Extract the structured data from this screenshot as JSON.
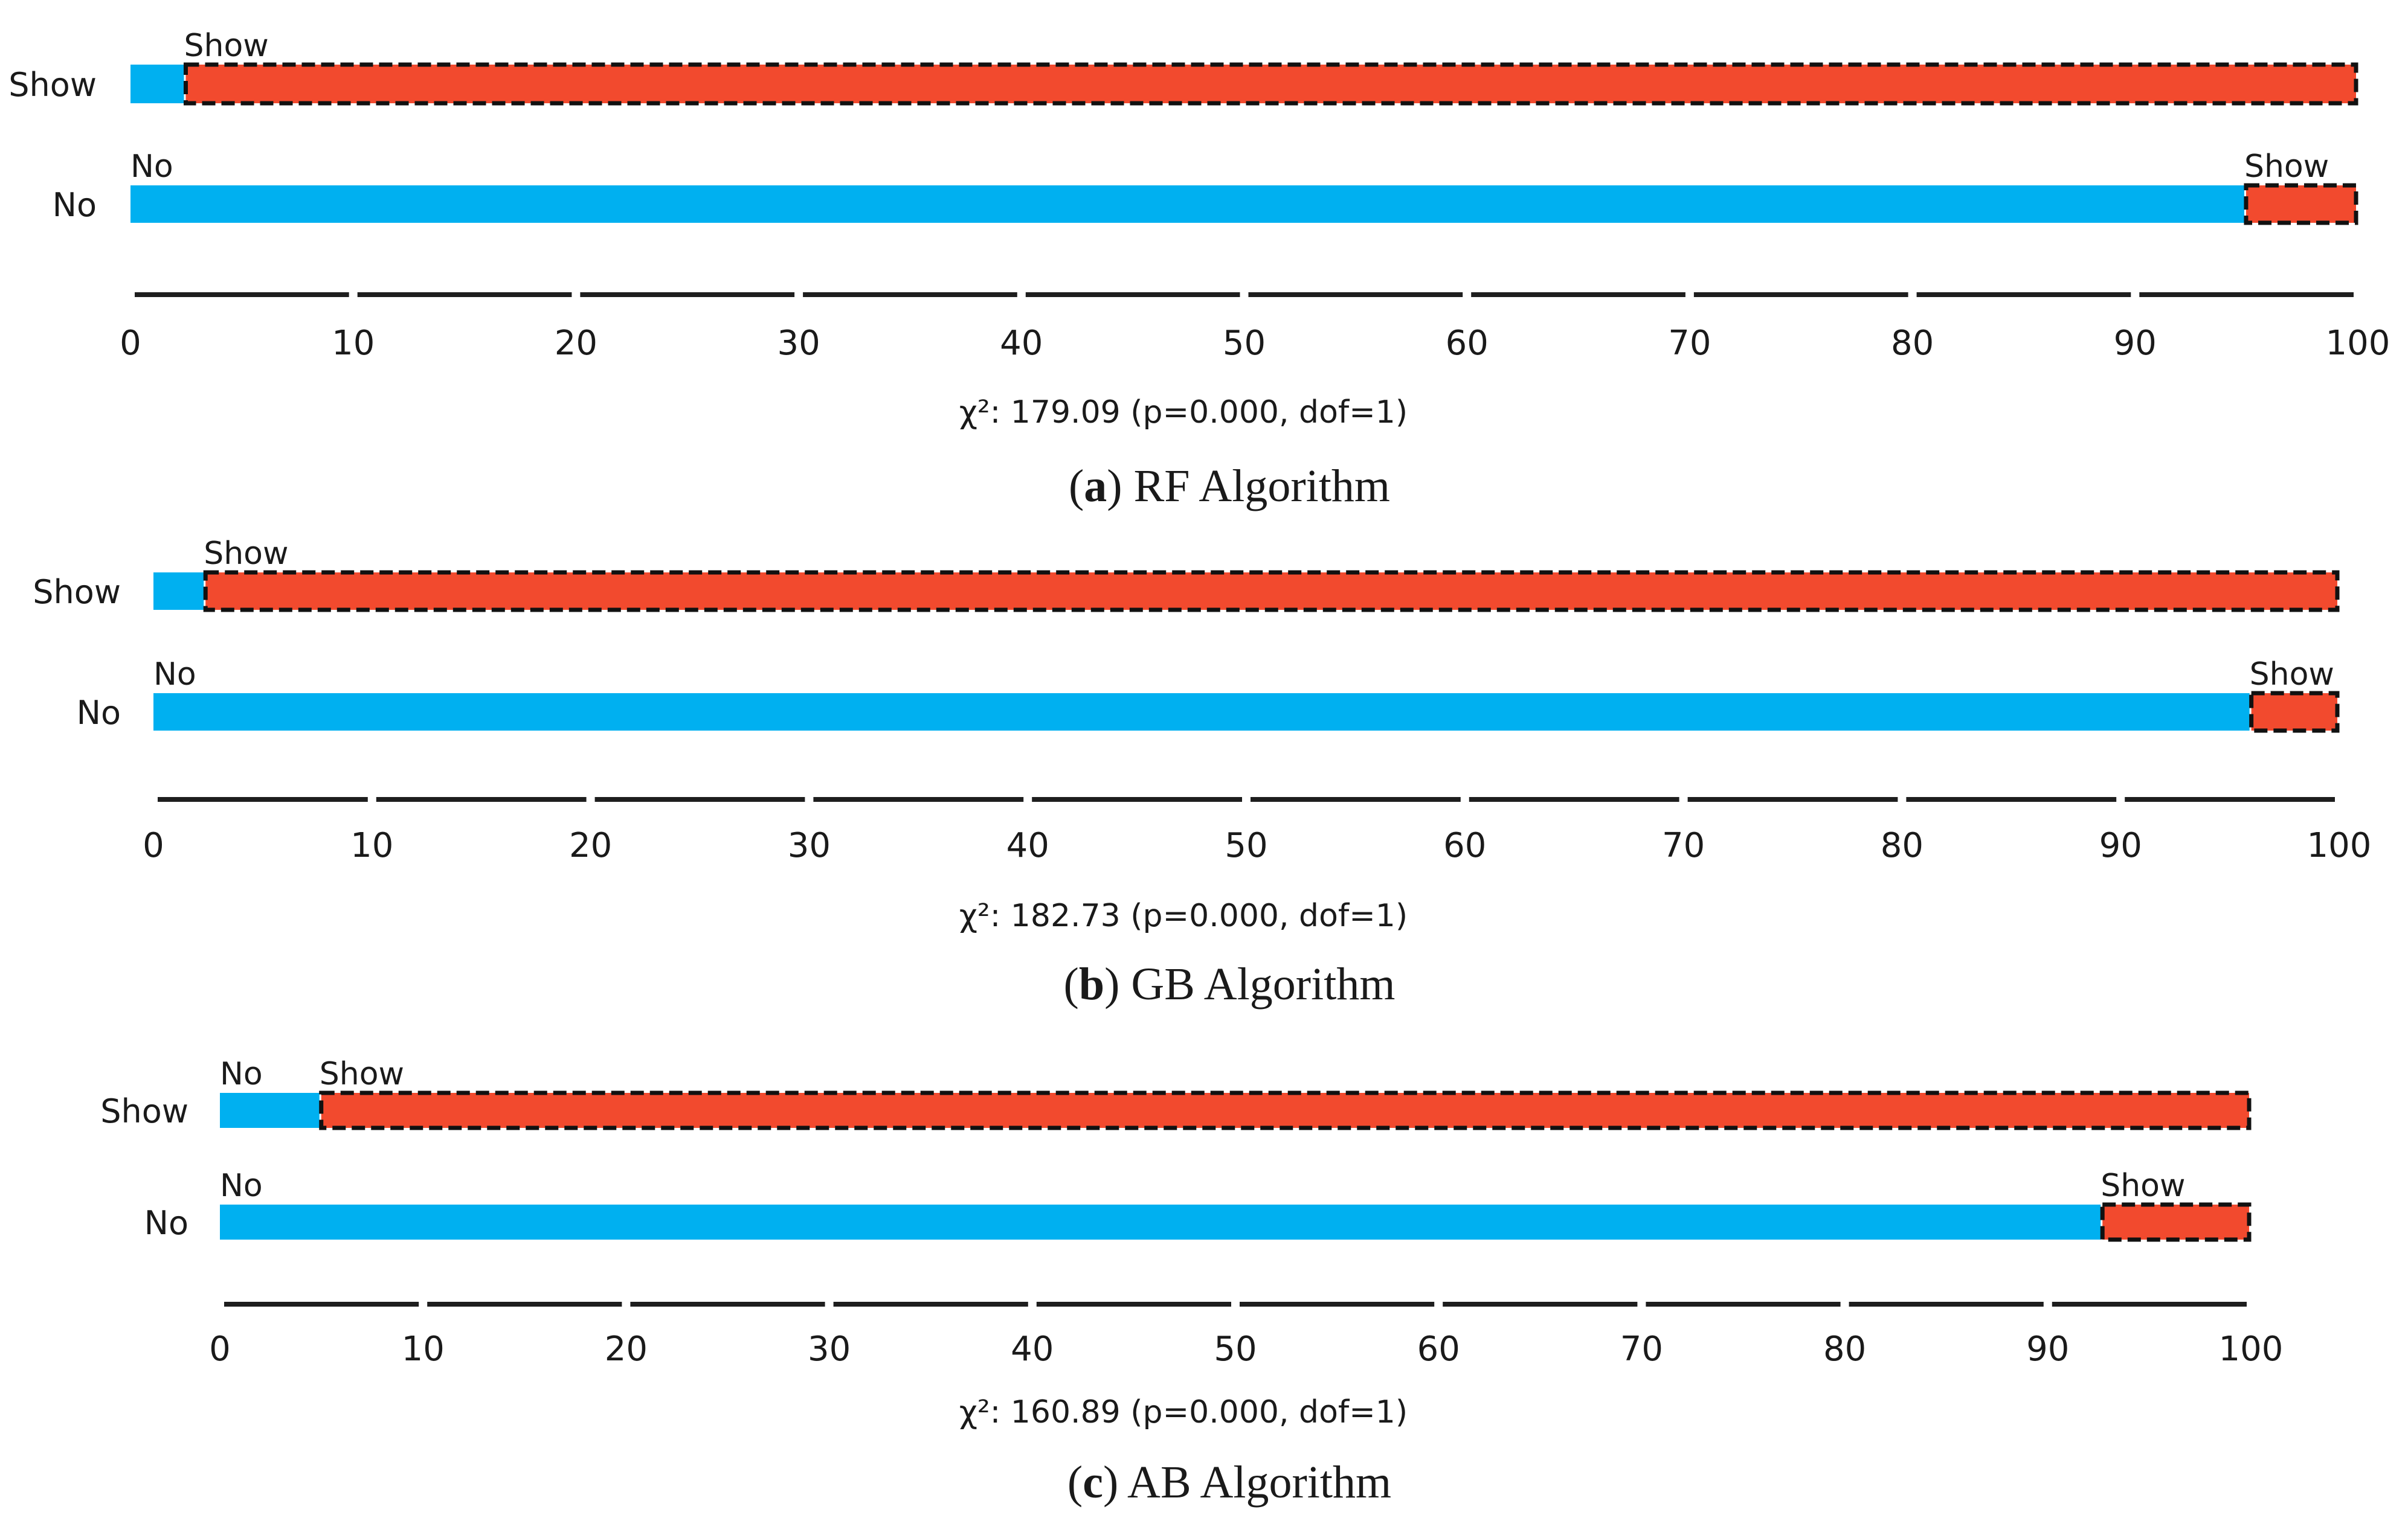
{
  "chart_data": [
    {
      "type": "bar",
      "orientation": "horizontal",
      "stacked": true,
      "caption_letter": "a",
      "caption_text": " RF Algorithm",
      "stat_text": "χ²: 179.09 (p=0.000, dof=1)",
      "xlim": [
        0,
        100
      ],
      "x_ticks": [
        "0",
        "10",
        "20",
        "30",
        "40",
        "50",
        "60",
        "70",
        "80",
        "90",
        "100"
      ],
      "rows": [
        {
          "label": "Show",
          "segments": [
            {
              "name": "No",
              "value": 2.4,
              "label": ""
            },
            {
              "name": "Show",
              "value": 97.6,
              "label": "Show"
            }
          ]
        },
        {
          "label": "No",
          "segments": [
            {
              "name": "No",
              "value": 94.9,
              "label": "No"
            },
            {
              "name": "Show",
              "value": 5.1,
              "label": "Show"
            }
          ]
        }
      ]
    },
    {
      "type": "bar",
      "orientation": "horizontal",
      "stacked": true,
      "caption_letter": "b",
      "caption_text": " GB Algorithm",
      "stat_text": "χ²: 182.73 (p=0.000, dof=1)",
      "xlim": [
        0,
        100
      ],
      "x_ticks": [
        "0",
        "10",
        "20",
        "30",
        "40",
        "50",
        "60",
        "70",
        "80",
        "90",
        "100"
      ],
      "rows": [
        {
          "label": "Show",
          "segments": [
            {
              "name": "No",
              "value": 2.3,
              "label": ""
            },
            {
              "name": "Show",
              "value": 97.7,
              "label": "Show"
            }
          ]
        },
        {
          "label": "No",
          "segments": [
            {
              "name": "No",
              "value": 95.9,
              "label": "No"
            },
            {
              "name": "Show",
              "value": 4.1,
              "label": "Show"
            }
          ]
        }
      ]
    },
    {
      "type": "bar",
      "orientation": "horizontal",
      "stacked": true,
      "caption_letter": "c",
      "caption_text": " AB Algorithm",
      "stat_text": "χ²: 160.89 (p=0.000, dof=1)",
      "xlim": [
        0,
        100
      ],
      "x_ticks": [
        "0",
        "10",
        "20",
        "30",
        "40",
        "50",
        "60",
        "70",
        "80",
        "90",
        "100"
      ],
      "rows": [
        {
          "label": "Show",
          "segments": [
            {
              "name": "No",
              "value": 4.9,
              "label": "No"
            },
            {
              "name": "Show",
              "value": 95.1,
              "label": "Show"
            }
          ]
        },
        {
          "label": "No",
          "segments": [
            {
              "name": "No",
              "value": 92.6,
              "label": "No"
            },
            {
              "name": "Show",
              "value": 7.4,
              "label": "Show"
            }
          ]
        }
      ]
    }
  ],
  "colors": {
    "no": "#00b0f0",
    "show": "#f24a2e",
    "axis": "#1e1e1e",
    "text": "#1a1a1a"
  }
}
